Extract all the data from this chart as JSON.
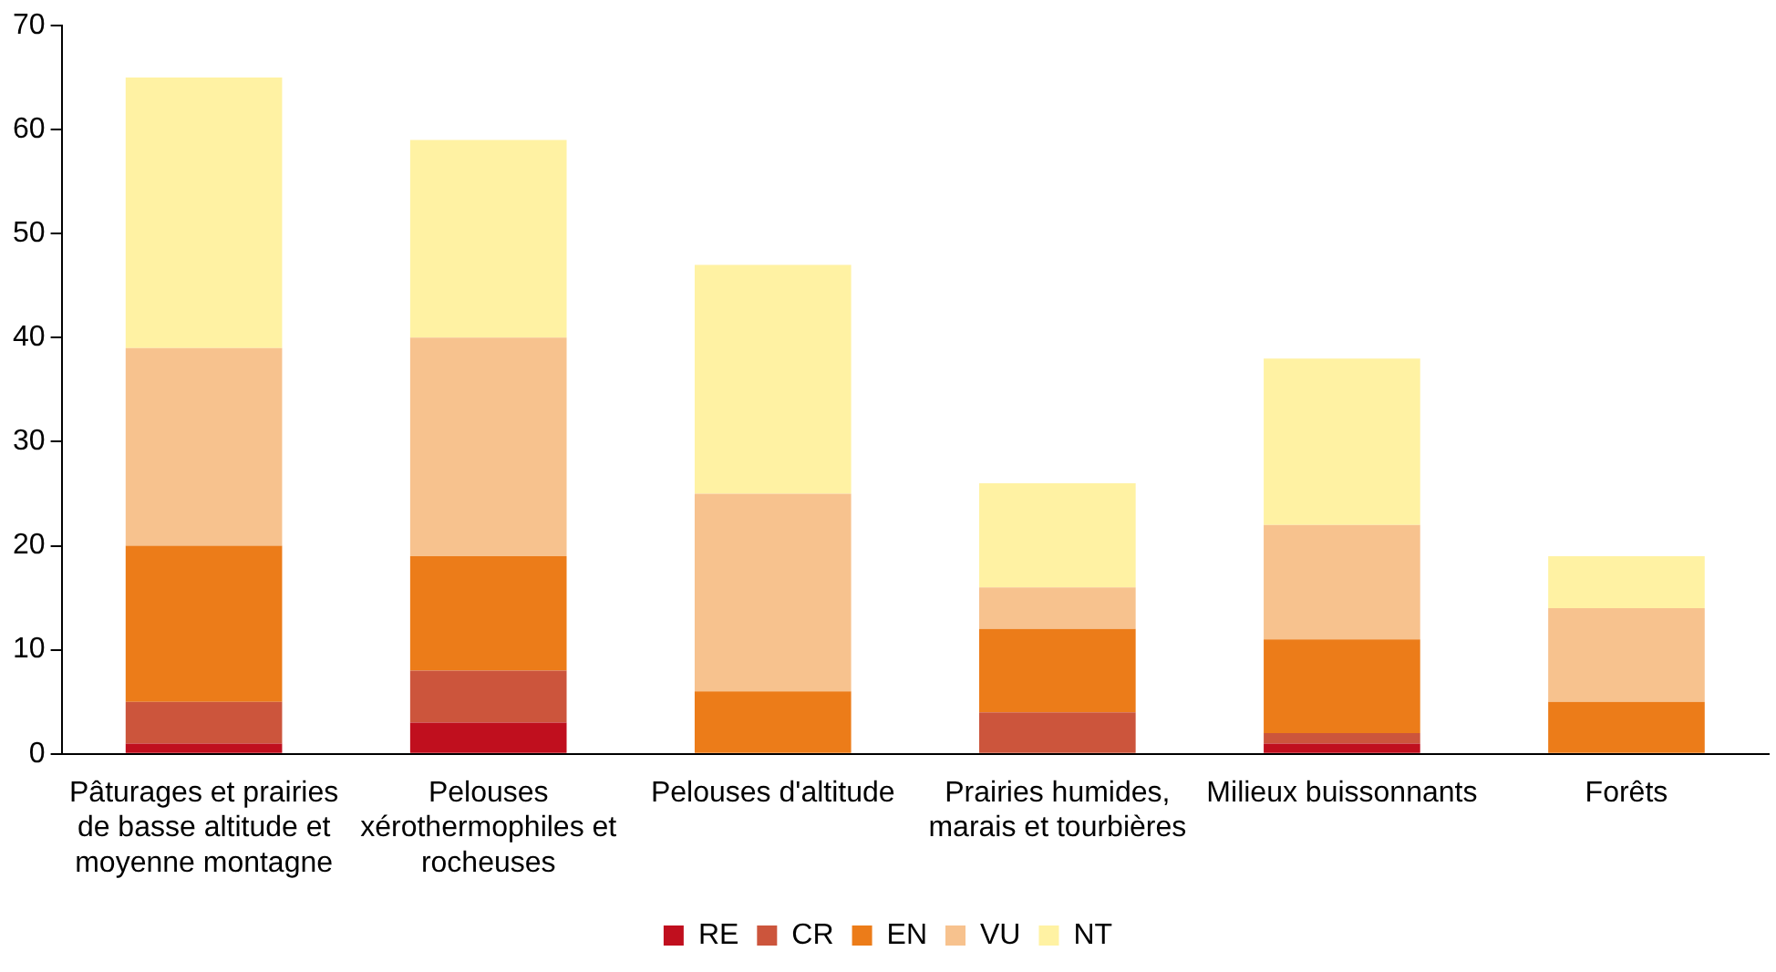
{
  "chart_data": {
    "type": "bar",
    "stacked": true,
    "categories": [
      "Pâturages et prairies de basse altitude et moyenne montagne",
      "Pelouses xérothermophiles et rocheuses",
      "Pelouses d'altitude",
      "Prairies humides, marais et tourbières",
      "Milieux buissonnants",
      "Forêts"
    ],
    "series": [
      {
        "name": "RE",
        "color": "#c00f1e",
        "values": [
          1,
          3,
          0,
          0,
          1,
          0
        ]
      },
      {
        "name": "CR",
        "color": "#cc553c",
        "values": [
          4,
          5,
          0,
          4,
          1,
          0
        ]
      },
      {
        "name": "EN",
        "color": "#ec7c19",
        "values": [
          15,
          11,
          6,
          8,
          9,
          5
        ]
      },
      {
        "name": "VU",
        "color": "#f7c28e",
        "values": [
          19,
          21,
          19,
          4,
          11,
          9
        ]
      },
      {
        "name": "NT",
        "color": "#fff2a3",
        "values": [
          26,
          19,
          22,
          10,
          16,
          5
        ]
      }
    ],
    "ylim": [
      0,
      70
    ],
    "yticks": [
      0,
      10,
      20,
      30,
      40,
      50,
      60,
      70
    ],
    "grid": false,
    "legend": "bottom"
  }
}
